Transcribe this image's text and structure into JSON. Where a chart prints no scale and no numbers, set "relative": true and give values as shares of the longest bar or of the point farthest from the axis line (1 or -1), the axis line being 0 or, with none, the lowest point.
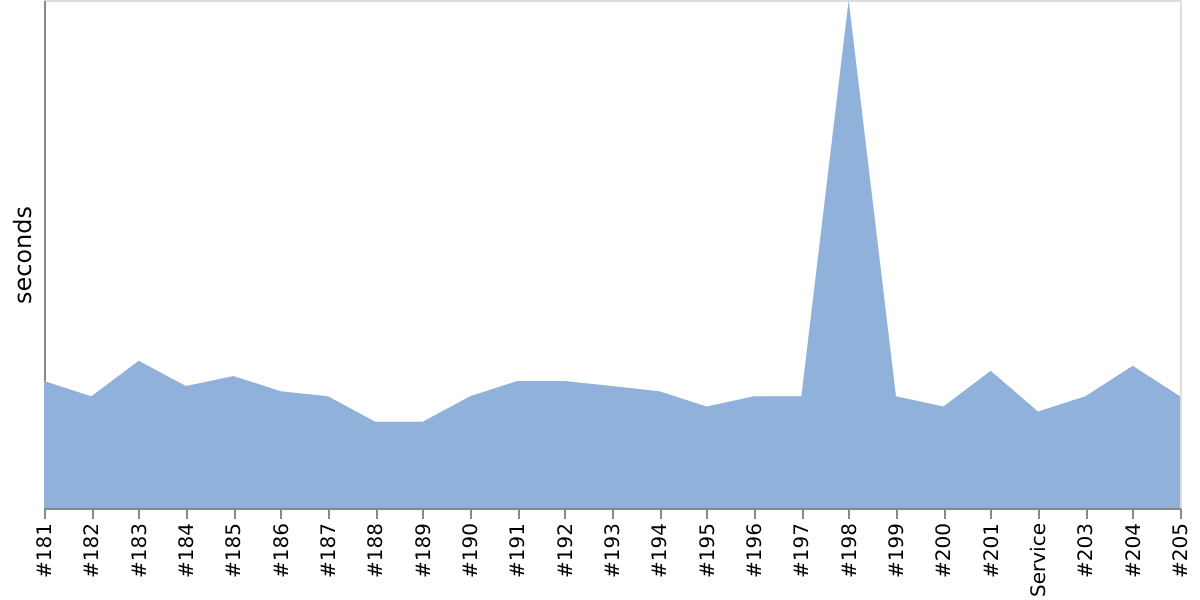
{
  "chart_data": {
    "type": "area",
    "ylabel": "seconds",
    "relative": true,
    "grid": false,
    "legend": false,
    "categories": [
      "#181",
      "#182",
      "#183",
      "#184",
      "#185",
      "#186",
      "#187",
      "#188",
      "#189",
      "#190",
      "#191",
      "#192",
      "#193",
      "#194",
      "#195",
      "#196",
      "#197",
      "#198",
      "#199",
      "#200",
      "#201",
      "Service",
      "#203",
      "#204",
      "#205"
    ],
    "series": [
      {
        "color": "#8fb1da",
        "values": [
          0.25,
          0.22,
          0.29,
          0.24,
          0.26,
          0.23,
          0.22,
          0.17,
          0.17,
          0.22,
          0.25,
          0.25,
          0.24,
          0.23,
          0.2,
          0.22,
          0.22,
          1,
          0.22,
          0.2,
          0.27,
          0.19,
          0.22,
          0.28,
          0.22
        ]
      }
    ]
  }
}
